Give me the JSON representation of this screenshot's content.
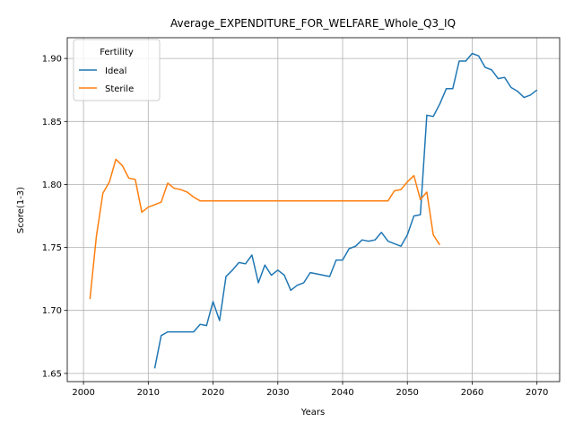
{
  "chart_data": {
    "type": "line",
    "title": "Average_EXPENDITURE_FOR_WELFARE_Whole_Q3_IQ",
    "xlabel": "Years",
    "ylabel": "Score(1-3)",
    "xlim": [
      1997.5,
      2073.5
    ],
    "ylim": [
      1.6435,
      1.9165
    ],
    "xticks": [
      2000,
      2010,
      2020,
      2030,
      2040,
      2050,
      2060,
      2070
    ],
    "yticks": [
      1.65,
      1.7,
      1.75,
      1.8,
      1.85,
      1.9
    ],
    "ytick_labels": [
      "1.65",
      "1.70",
      "1.75",
      "1.80",
      "1.85",
      "1.90"
    ],
    "grid": true,
    "legend": {
      "title": "Fertility",
      "placement": "top-left"
    },
    "series": [
      {
        "name": "Ideal",
        "color": "#1f77b4",
        "x": [
          2011,
          2012,
          2013,
          2014,
          2015,
          2016,
          2017,
          2018,
          2019,
          2020,
          2021,
          2022,
          2023,
          2024,
          2025,
          2026,
          2027,
          2028,
          2029,
          2030,
          2031,
          2032,
          2033,
          2034,
          2035,
          2036,
          2037,
          2038,
          2039,
          2040,
          2041,
          2042,
          2043,
          2044,
          2045,
          2046,
          2047,
          2048,
          2049,
          2050,
          2051,
          2052,
          2053,
          2054,
          2055,
          2056,
          2057,
          2058,
          2059,
          2060,
          2061,
          2062,
          2063,
          2064,
          2065,
          2066,
          2067,
          2068,
          2069,
          2070
        ],
        "y": [
          1.654,
          1.68,
          1.683,
          1.683,
          1.683,
          1.683,
          1.683,
          1.689,
          1.688,
          1.707,
          1.692,
          1.727,
          1.732,
          1.738,
          1.737,
          1.744,
          1.722,
          1.736,
          1.728,
          1.732,
          1.728,
          1.716,
          1.72,
          1.722,
          1.73,
          1.729,
          1.728,
          1.727,
          1.74,
          1.74,
          1.749,
          1.751,
          1.756,
          1.755,
          1.756,
          1.762,
          1.755,
          1.753,
          1.751,
          1.76,
          1.775,
          1.776,
          1.855,
          1.854,
          1.864,
          1.876,
          1.876,
          1.898,
          1.898,
          1.904,
          1.902,
          1.893,
          1.891,
          1.884,
          1.885,
          1.877,
          1.874,
          1.869,
          1.871,
          1.875
        ]
      },
      {
        "name": "Sterile",
        "color": "#ff7f0e",
        "x": [
          2001,
          2002,
          2003,
          2004,
          2005,
          2006,
          2007,
          2008,
          2009,
          2010,
          2011,
          2012,
          2013,
          2014,
          2015,
          2016,
          2017,
          2018,
          2019,
          2020,
          2021,
          2022,
          2023,
          2024,
          2025,
          2026,
          2027,
          2028,
          2029,
          2030,
          2031,
          2032,
          2033,
          2034,
          2035,
          2036,
          2037,
          2038,
          2039,
          2040,
          2041,
          2042,
          2043,
          2044,
          2045,
          2046,
          2047,
          2048,
          2049,
          2050,
          2051,
          2052,
          2053,
          2054,
          2055
        ],
        "y": [
          1.709,
          1.759,
          1.793,
          1.802,
          1.82,
          1.815,
          1.805,
          1.804,
          1.778,
          1.782,
          1.784,
          1.786,
          1.801,
          1.797,
          1.796,
          1.794,
          1.79,
          1.787,
          1.787,
          1.787,
          1.787,
          1.787,
          1.787,
          1.787,
          1.787,
          1.787,
          1.787,
          1.787,
          1.787,
          1.787,
          1.787,
          1.787,
          1.787,
          1.787,
          1.787,
          1.787,
          1.787,
          1.787,
          1.787,
          1.787,
          1.787,
          1.787,
          1.787,
          1.787,
          1.787,
          1.787,
          1.787,
          1.795,
          1.796,
          1.802,
          1.807,
          1.788,
          1.794,
          1.76,
          1.752
        ]
      }
    ]
  }
}
